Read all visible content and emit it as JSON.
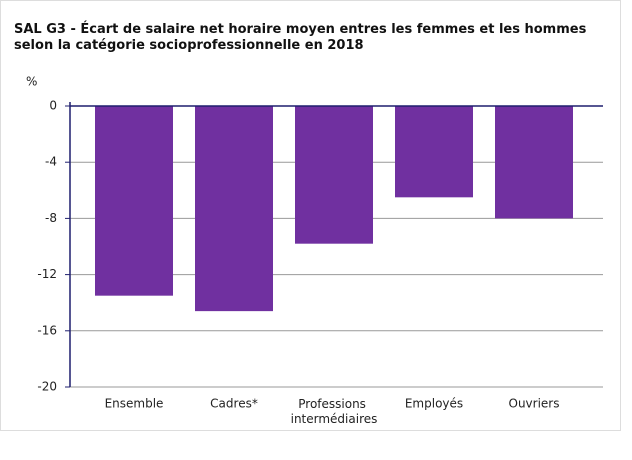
{
  "chart_data": {
    "type": "bar",
    "title": "SAL G3 - Écart de salaire net horaire moyen entres les femmes et les hommes selon la catégorie socioprofessionnelle en 2018",
    "ylabel": "%",
    "categories": [
      "Ensemble",
      "Cadres*",
      "Professions intermédiaires",
      "Employés",
      "Ouvriers"
    ],
    "values": [
      -13.5,
      -14.6,
      -9.8,
      -6.5,
      -8.0
    ],
    "color": "#7030a0",
    "ylim": [
      -20,
      0
    ],
    "yticks": [
      0,
      -4,
      -8,
      -12,
      -16,
      -20
    ],
    "grid": true
  }
}
